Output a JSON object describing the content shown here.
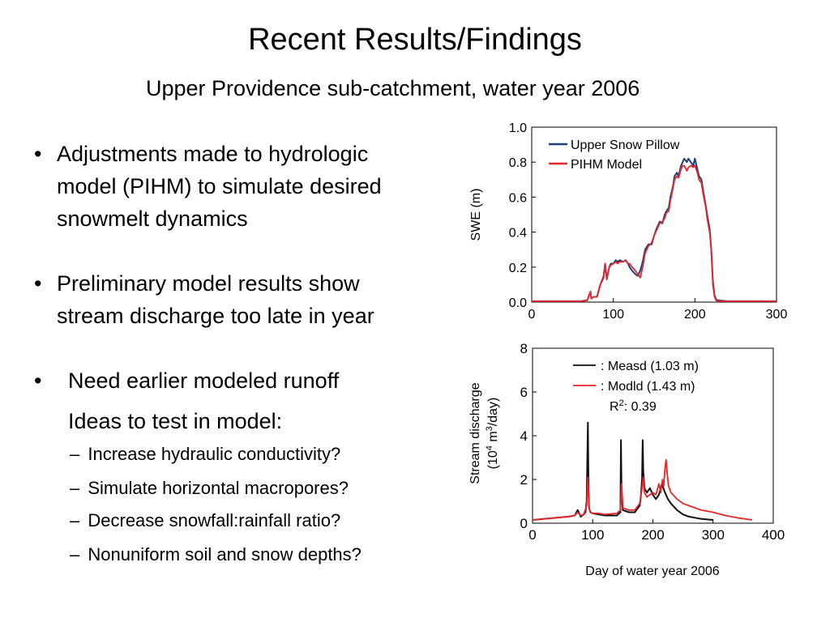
{
  "slide": {
    "title": "Recent Results/Findings",
    "subtitle": "Upper Providence sub-catchment, water year 2006",
    "bullets": [
      {
        "symbol": "•",
        "line1": "Adjustments made to hydrologic",
        "line2": "model (PIHM) to simulate desired",
        "line3": "snowmelt dynamics"
      },
      {
        "symbol": "•",
        "line1": "Preliminary model results show",
        "line2": "stream discharge too late in year"
      },
      {
        "symbol": "•",
        "line1": "Need earlier modeled runoff",
        "line2": "Ideas to test in model:"
      }
    ],
    "sub_items": [
      {
        "dash": "–",
        "text": "Increase hydraulic conductivity?"
      },
      {
        "dash": "–",
        "text": "Simulate horizontal macropores?"
      },
      {
        "dash": "–",
        "text": "Decrease snowfall:rainfall ratio?"
      },
      {
        "dash": "–",
        "text": "Nonuniform soil and snow depths?"
      }
    ],
    "shared_xlabel": "Day of water year 2006"
  },
  "chart_data": [
    {
      "type": "line",
      "ylabel": "SWE (m)",
      "xlim": [
        0,
        300
      ],
      "ylim": [
        0,
        1.0
      ],
      "xticks": [
        0,
        100,
        200,
        300
      ],
      "yticks": [
        0.0,
        0.2,
        0.4,
        0.6,
        0.8,
        1.0
      ],
      "xtick_labels": [
        "0",
        "100",
        "200",
        "300"
      ],
      "ytick_labels": [
        "0.0",
        "0.2",
        "0.4",
        "0.6",
        "0.8",
        "1.0"
      ],
      "legend_position": "top-left",
      "series": [
        {
          "name": "Upper Snow Pillow",
          "color": "#1f3f7a",
          "x": [
            0,
            60,
            68,
            72,
            73,
            76,
            80,
            84,
            88,
            90,
            92,
            95,
            97,
            100,
            103,
            105,
            108,
            112,
            115,
            118,
            120,
            123,
            127,
            130,
            133,
            136,
            139,
            143,
            147,
            150,
            153,
            157,
            160,
            163,
            165,
            168,
            170,
            173,
            175,
            178,
            180,
            183,
            185,
            187,
            190,
            192,
            195,
            198,
            200,
            203,
            205,
            208,
            210,
            213,
            215,
            218,
            220,
            222,
            224,
            226,
            228,
            240,
            300
          ],
          "y": [
            0.005,
            0.005,
            0.01,
            0.06,
            0.02,
            0.03,
            0.03,
            0.1,
            0.14,
            0.22,
            0.13,
            0.2,
            0.22,
            0.22,
            0.24,
            0.23,
            0.24,
            0.23,
            0.24,
            0.22,
            0.2,
            0.18,
            0.16,
            0.15,
            0.18,
            0.23,
            0.3,
            0.33,
            0.33,
            0.38,
            0.42,
            0.46,
            0.45,
            0.5,
            0.52,
            0.54,
            0.6,
            0.66,
            0.72,
            0.74,
            0.72,
            0.78,
            0.8,
            0.82,
            0.8,
            0.82,
            0.8,
            0.78,
            0.82,
            0.76,
            0.72,
            0.7,
            0.64,
            0.56,
            0.5,
            0.42,
            0.3,
            0.12,
            0.04,
            0.015,
            0.01,
            0.005,
            0.005
          ]
        },
        {
          "name": "PIHM Model",
          "color": "#e8262b",
          "x": [
            0,
            60,
            68,
            72,
            73,
            76,
            80,
            84,
            88,
            90,
            92,
            95,
            97,
            100,
            103,
            105,
            108,
            112,
            115,
            118,
            120,
            123,
            127,
            130,
            133,
            136,
            139,
            143,
            147,
            150,
            153,
            157,
            160,
            163,
            165,
            168,
            170,
            173,
            175,
            178,
            180,
            183,
            185,
            187,
            190,
            192,
            195,
            198,
            200,
            203,
            205,
            208,
            210,
            213,
            215,
            218,
            220,
            222,
            224,
            226,
            228,
            240,
            300
          ],
          "y": [
            0.005,
            0.005,
            0.01,
            0.06,
            0.02,
            0.03,
            0.03,
            0.1,
            0.15,
            0.22,
            0.13,
            0.2,
            0.21,
            0.22,
            0.23,
            0.22,
            0.23,
            0.23,
            0.24,
            0.22,
            0.22,
            0.2,
            0.18,
            0.16,
            0.14,
            0.2,
            0.28,
            0.32,
            0.34,
            0.38,
            0.41,
            0.45,
            0.46,
            0.48,
            0.51,
            0.52,
            0.58,
            0.65,
            0.7,
            0.72,
            0.71,
            0.76,
            0.78,
            0.78,
            0.75,
            0.77,
            0.78,
            0.77,
            0.78,
            0.74,
            0.7,
            0.68,
            0.62,
            0.55,
            0.48,
            0.4,
            0.3,
            0.1,
            0.03,
            0.01,
            0.005,
            0.005,
            0.005
          ]
        }
      ]
    },
    {
      "type": "line",
      "ylabel_line1": "Stream discharge",
      "ylabel_line2_pre": "(10",
      "ylabel_line2_sup1": "4",
      "ylabel_line2_mid": " m",
      "ylabel_line2_sup2": "3",
      "ylabel_line2_post": "/day)",
      "xlim": [
        0,
        400
      ],
      "ylim": [
        0,
        8
      ],
      "xticks": [
        0,
        100,
        200,
        300,
        400
      ],
      "yticks": [
        0,
        2,
        4,
        6,
        8
      ],
      "xtick_labels": [
        "0",
        "100",
        "200",
        "300",
        "400"
      ],
      "ytick_labels": [
        "0",
        "2",
        "4",
        "6",
        "8"
      ],
      "legend_position": "top",
      "legend_labels": [
        ": Measd (1.03 m)",
        ": Modld (1.43 m)"
      ],
      "annotation_r": "R",
      "annotation_sup": "2",
      "annotation_rest": ": 0.39",
      "series": [
        {
          "name": "Measd",
          "color": "#111111",
          "x": [
            0,
            20,
            40,
            60,
            70,
            75,
            80,
            85,
            88,
            90,
            92,
            93,
            94,
            96,
            100,
            110,
            120,
            140,
            146,
            147,
            148,
            150,
            160,
            170,
            178,
            180,
            182,
            183,
            184,
            186,
            190,
            195,
            200,
            205,
            210,
            215,
            220,
            225,
            230,
            240,
            250,
            260,
            270,
            280,
            300
          ],
          "y": [
            0.15,
            0.2,
            0.25,
            0.3,
            0.35,
            0.6,
            0.3,
            0.4,
            0.5,
            1.0,
            4.6,
            1.5,
            0.7,
            0.5,
            0.45,
            0.4,
            0.35,
            0.35,
            0.5,
            3.8,
            1.2,
            0.6,
            0.5,
            0.5,
            0.8,
            1.2,
            2.0,
            3.8,
            2.4,
            1.6,
            1.4,
            1.6,
            1.3,
            1.1,
            1.3,
            1.8,
            1.4,
            1.1,
            0.9,
            0.6,
            0.4,
            0.3,
            0.25,
            0.2,
            0.15
          ]
        },
        {
          "name": "Modld",
          "color": "#e8262b",
          "x": [
            0,
            20,
            40,
            60,
            70,
            75,
            80,
            85,
            90,
            92,
            94,
            96,
            100,
            110,
            120,
            140,
            146,
            148,
            150,
            160,
            170,
            178,
            182,
            184,
            186,
            190,
            195,
            200,
            205,
            210,
            213,
            216,
            218,
            220,
            222,
            224,
            226,
            230,
            240,
            250,
            260,
            270,
            280,
            300,
            320,
            340,
            365
          ],
          "y": [
            0.15,
            0.2,
            0.25,
            0.3,
            0.35,
            0.5,
            0.35,
            0.4,
            0.8,
            2.1,
            0.7,
            0.5,
            0.45,
            0.45,
            0.4,
            0.45,
            0.6,
            1.8,
            0.7,
            0.6,
            0.6,
            0.9,
            1.6,
            2.1,
            1.4,
            1.2,
            1.3,
            1.4,
            1.3,
            1.8,
            1.4,
            2.0,
            1.7,
            2.5,
            2.9,
            2.2,
            1.7,
            1.4,
            1.1,
            0.9,
            0.8,
            0.7,
            0.6,
            0.5,
            0.35,
            0.25,
            0.15
          ]
        }
      ]
    }
  ]
}
